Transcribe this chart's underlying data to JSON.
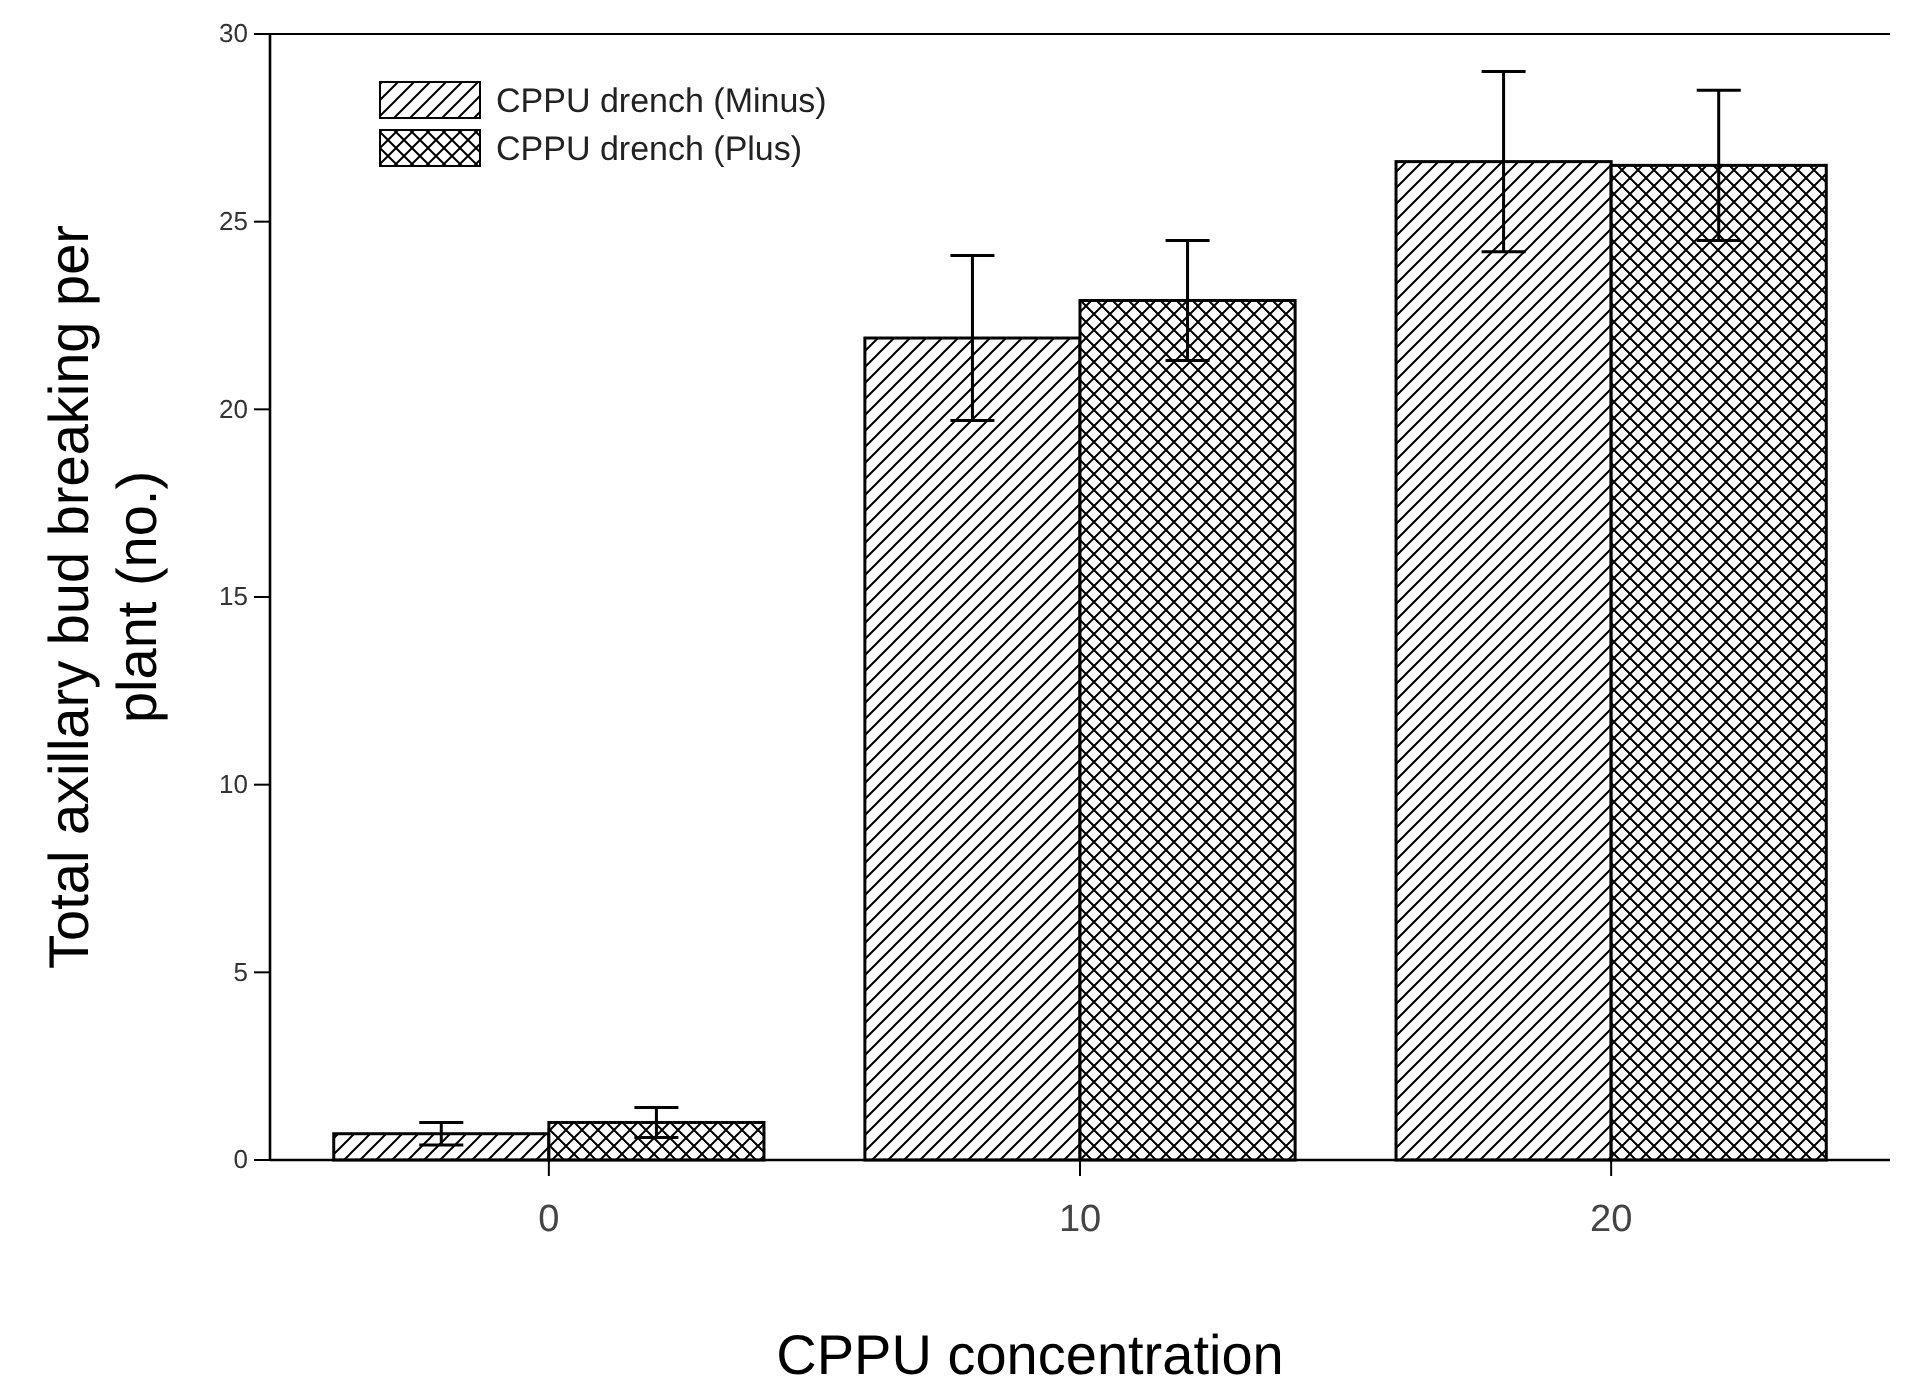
{
  "chart_data": {
    "type": "bar",
    "xlabel": "CPPU concentration",
    "ylabel": "Total axillary bud breaking per plant (no.)",
    "categories": [
      "0",
      "10",
      "20"
    ],
    "series": [
      {
        "name": "CPPU drench (Minus)",
        "color": "#000000",
        "values": [
          0.7,
          21.9,
          26.6
        ],
        "errors": [
          0.3,
          2.2,
          2.4
        ]
      },
      {
        "name": "CPPU drench (Plus)",
        "color": "#000000",
        "values": [
          1.0,
          22.9,
          26.5
        ],
        "errors": [
          0.4,
          1.6,
          2.0
        ]
      }
    ],
    "ylim": [
      0,
      30
    ],
    "yticks": [
      0,
      5,
      10,
      15,
      20,
      25,
      30
    ],
    "legend": "top left"
  }
}
